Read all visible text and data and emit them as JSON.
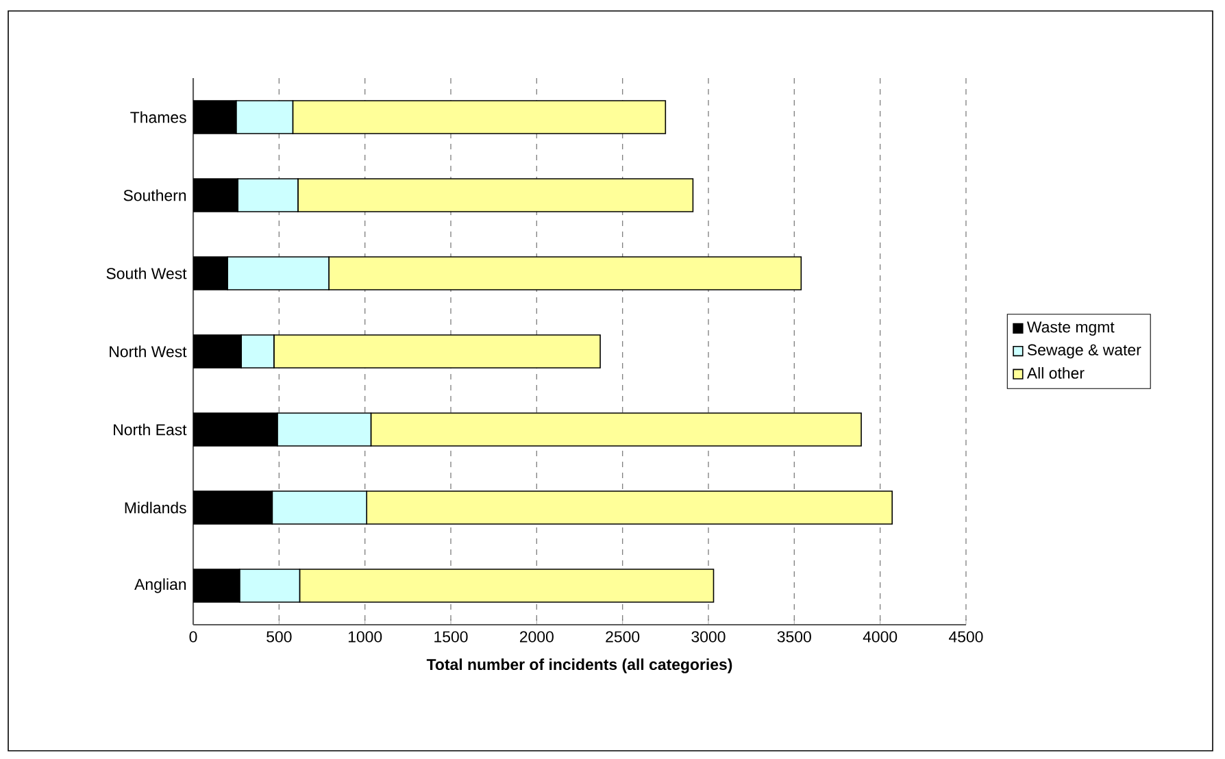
{
  "chart_data": {
    "type": "bar",
    "orientation": "horizontal",
    "stacked": true,
    "categories": [
      "Thames",
      "Southern",
      "South West",
      "North West",
      "North East",
      "Midlands",
      "Anglian"
    ],
    "series": [
      {
        "name": "Waste mgmt",
        "color": "#000000",
        "values": [
          250,
          260,
          200,
          280,
          490,
          460,
          270
        ]
      },
      {
        "name": "Sewage & water",
        "color": "#ccffff",
        "values": [
          330,
          350,
          590,
          190,
          545,
          550,
          350
        ]
      },
      {
        "name": "All other",
        "color": "#ffff99",
        "values": [
          2170,
          2300,
          2750,
          1900,
          2855,
          3060,
          2410
        ]
      }
    ],
    "xlabel": "Total number of incidents (all categories)",
    "xlim": [
      0,
      4500
    ],
    "xticks": [
      0,
      500,
      1000,
      1500,
      2000,
      2500,
      3000,
      3500,
      4000,
      4500
    ],
    "grid": "x",
    "legend": "right"
  }
}
